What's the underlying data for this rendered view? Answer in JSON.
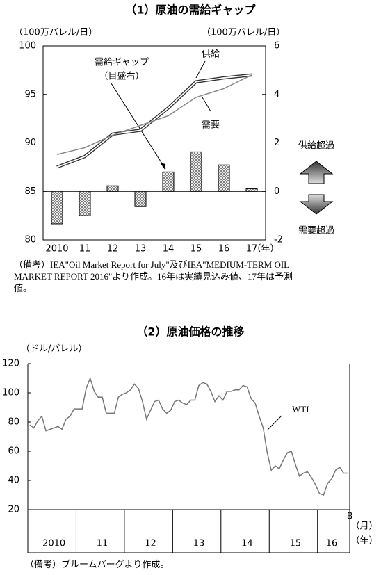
{
  "chart_data": [
    {
      "type": "bar-line",
      "title": "（1）原油の需給ギャップ",
      "y_label": "（100万バレル/日）",
      "y2_label": "（100万バレル/日）",
      "categories": [
        "2010",
        "11",
        "12",
        "13",
        "14",
        "15",
        "16",
        "17"
      ],
      "x_unit": "（年）",
      "ylim": [
        80,
        100
      ],
      "yticks": [
        80,
        85,
        90,
        95,
        100
      ],
      "y2lim": [
        -2,
        6
      ],
      "y2ticks": [
        -2,
        0,
        2,
        4,
        6
      ],
      "series": [
        {
          "name": "供給",
          "kind": "line",
          "color": "#333333",
          "values": [
            87.5,
            88.6,
            90.9,
            91.3,
            93.6,
            96.3,
            96.7,
            97.0
          ]
        },
        {
          "name": "需要",
          "kind": "line",
          "color": "#888888",
          "values": [
            88.8,
            89.5,
            90.8,
            91.8,
            92.8,
            94.7,
            95.6,
            97.0
          ]
        },
        {
          "name": "需給ギャップ",
          "kind": "bar",
          "axis": "y2",
          "color": "#bbbbbb",
          "values": [
            -1.34,
            -1.0,
            0.23,
            -0.63,
            0.8,
            1.63,
            1.09,
            0.11
          ]
        }
      ],
      "annotations": [
        "需給ギャップ",
        "（目盛右）",
        "供給超過",
        "需要超過"
      ],
      "note": "（備考）IEA\"Oil Market Report for July\"及びIEA\"MEDIUM-TERM OIL MARKET REPORT 2016\"より作成。16年は実績見込み値、17年は予測値。"
    },
    {
      "type": "line",
      "title": "（2）原油価格の推移",
      "y_label": "（ドル/バレル）",
      "categories": [
        null,
        null,
        null,
        null,
        null,
        null,
        "2010",
        null,
        null,
        null,
        null,
        null,
        null,
        null,
        null,
        null,
        null,
        null,
        "11",
        null,
        null,
        null,
        null,
        null,
        null,
        null,
        null,
        null,
        null,
        null,
        "12",
        null,
        null,
        null,
        null,
        null,
        null,
        null,
        null,
        null,
        null,
        null,
        "13",
        null,
        null,
        null,
        null,
        null,
        null,
        null,
        null,
        null,
        null,
        null,
        "14",
        null,
        null,
        null,
        null,
        null,
        null,
        null,
        null,
        null,
        null,
        null,
        "15",
        null,
        null,
        null,
        null,
        null,
        null,
        null,
        null,
        "16",
        null,
        null,
        null,
        "8"
      ],
      "x_unit": "（月）",
      "year_unit": "（年）",
      "ylim": [
        20,
        120
      ],
      "yticks": [
        20,
        40,
        60,
        80,
        100,
        120
      ],
      "series": [
        {
          "name": "WTI",
          "color": "#777777",
          "values": [
            78,
            76,
            81,
            84,
            74,
            75,
            76,
            77,
            75,
            82,
            84,
            89,
            89,
            89,
            103,
            110,
            101,
            97,
            97,
            86,
            86,
            86,
            97,
            99,
            100,
            102,
            106,
            103,
            94,
            82,
            88,
            94,
            95,
            89,
            86,
            88,
            94,
            95,
            93,
            92,
            95,
            95,
            105,
            107,
            106,
            101,
            94,
            98,
            95,
            101,
            101,
            102,
            102,
            105,
            104,
            96,
            93,
            84,
            76,
            59,
            47,
            50,
            48,
            54,
            59,
            60,
            51,
            43,
            45,
            46,
            42,
            37,
            31,
            30,
            38,
            41,
            47,
            49,
            45,
            45
          ]
        }
      ],
      "note": "（備考）ブルームバーグより作成。"
    }
  ]
}
